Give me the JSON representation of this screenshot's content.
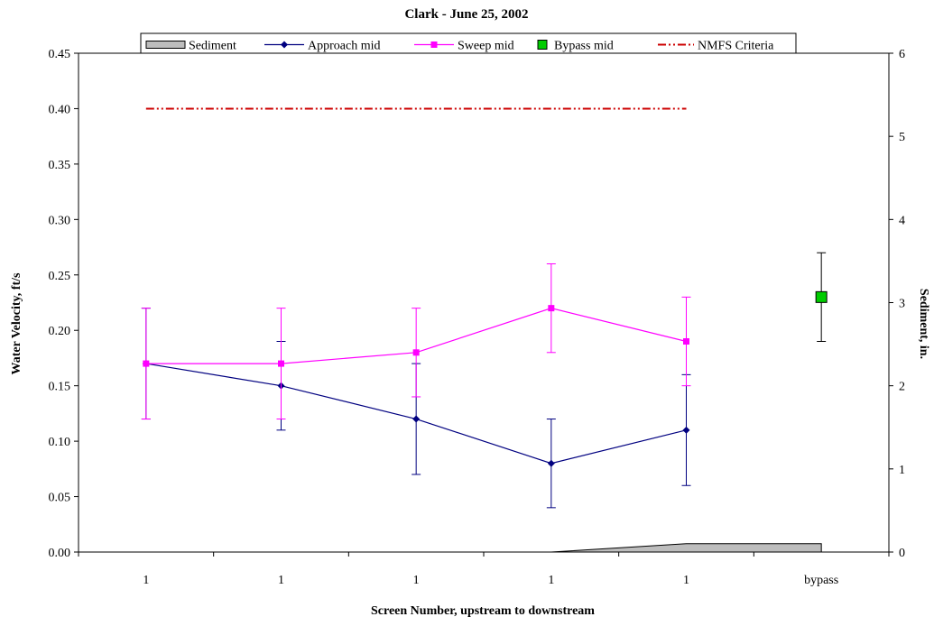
{
  "chart_data": {
    "type": "line",
    "title": "Clark - June 25, 2002",
    "xlabel": "Screen Number, upstream to downstream",
    "ylabel": "Water Velocity, ft/s",
    "y2label": "Sediment, in.",
    "categories": [
      "1",
      "1",
      "1",
      "1",
      "1",
      "bypass"
    ],
    "ylim": [
      0,
      0.45
    ],
    "yticks": [
      "0.00",
      "0.05",
      "0.10",
      "0.15",
      "0.20",
      "0.25",
      "0.30",
      "0.35",
      "0.40",
      "0.45"
    ],
    "y2lim": [
      0,
      6
    ],
    "y2ticks": [
      "0",
      "1",
      "2",
      "3",
      "4",
      "5",
      "6"
    ],
    "grid": false,
    "legend_position": "top",
    "series": [
      {
        "name": "Sediment",
        "type": "area",
        "axis": "right",
        "color": "#808080",
        "values": [
          0,
          0,
          0,
          0,
          0.1,
          0.1
        ]
      },
      {
        "name": "Approach mid",
        "type": "line",
        "marker": "diamond",
        "color": "#000080",
        "values": [
          0.17,
          0.15,
          0.12,
          0.08,
          0.11,
          null
        ],
        "error_low": [
          0.12,
          0.11,
          0.07,
          0.04,
          0.06,
          null
        ],
        "error_high": [
          0.22,
          0.19,
          0.17,
          0.12,
          0.16,
          null
        ]
      },
      {
        "name": "Sweep mid",
        "type": "line",
        "marker": "square",
        "color": "#ff00ff",
        "values": [
          0.17,
          0.17,
          0.18,
          0.22,
          0.19,
          null
        ],
        "error_low": [
          0.12,
          0.12,
          0.14,
          0.18,
          0.15,
          null
        ],
        "error_high": [
          0.22,
          0.22,
          0.22,
          0.26,
          0.23,
          null
        ]
      },
      {
        "name": "Bypass mid",
        "type": "scatter",
        "marker": "square",
        "color": "#00cc00",
        "values": [
          null,
          null,
          null,
          null,
          null,
          0.23
        ],
        "error_low": [
          null,
          null,
          null,
          null,
          null,
          0.19
        ],
        "error_high": [
          null,
          null,
          null,
          null,
          null,
          0.27
        ]
      },
      {
        "name": "NMFS Criteria",
        "type": "line",
        "dash": "dash-dot-dot",
        "color": "#cc0000",
        "values": [
          0.4,
          0.4,
          0.4,
          0.4,
          0.4,
          null
        ]
      }
    ]
  }
}
